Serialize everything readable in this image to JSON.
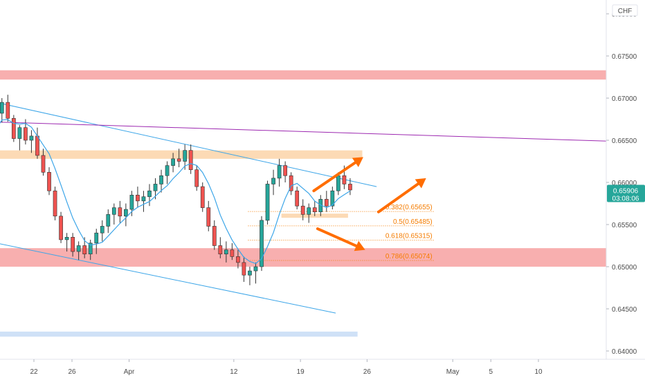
{
  "chart_data": {
    "type": "candlestick",
    "currency": "CHF",
    "y_axis": {
      "ticks": [
        "0.68000",
        "0.67500",
        "0.67000",
        "0.66500",
        "0.66000",
        "0.65500",
        "0.65000",
        "0.64500",
        "0.64000"
      ],
      "range": [
        0.6388,
        0.6812
      ]
    },
    "x_axis": {
      "ticks": [
        {
          "label": "22",
          "x": 22
        },
        {
          "label": "26",
          "x": 26
        },
        {
          "label": "Apr",
          "x": 32
        },
        {
          "label": "12",
          "x": 43
        },
        {
          "label": "19",
          "x": 50
        },
        {
          "label": "26",
          "x": 57
        },
        {
          "label": "May",
          "x": 66
        },
        {
          "label": "5",
          "x": 70
        },
        {
          "label": "10",
          "x": 75
        }
      ],
      "range": [
        17.2,
        85.0
      ]
    },
    "last_price": {
      "value": "0.65906",
      "countdown": "03:08:06",
      "color": "#26a69a"
    },
    "candles": [
      [
        0.6657,
        0.6668,
        0.6638,
        0.6645
      ],
      [
        0.6645,
        0.6689,
        0.664,
        0.6682
      ],
      [
        0.6682,
        0.67,
        0.6671,
        0.6695
      ],
      [
        0.6695,
        0.6704,
        0.6672,
        0.6676
      ],
      [
        0.6676,
        0.668,
        0.6648,
        0.6652
      ],
      [
        0.6652,
        0.6668,
        0.6638,
        0.6665
      ],
      [
        0.6665,
        0.6675,
        0.6645,
        0.665
      ],
      [
        0.665,
        0.6662,
        0.6635,
        0.6655
      ],
      [
        0.6655,
        0.6665,
        0.6628,
        0.6632
      ],
      [
        0.6632,
        0.664,
        0.6608,
        0.6612
      ],
      [
        0.6612,
        0.6618,
        0.6585,
        0.659
      ],
      [
        0.659,
        0.6595,
        0.6555,
        0.656
      ],
      [
        0.656,
        0.6565,
        0.6528,
        0.6532
      ],
      [
        0.6532,
        0.654,
        0.6518,
        0.6535
      ],
      [
        0.6535,
        0.654,
        0.6512,
        0.6518
      ],
      [
        0.6518,
        0.653,
        0.6508,
        0.6525
      ],
      [
        0.6525,
        0.6535,
        0.651,
        0.6515
      ],
      [
        0.6515,
        0.6532,
        0.6508,
        0.6528
      ],
      [
        0.6528,
        0.6545,
        0.6515,
        0.654
      ],
      [
        0.654,
        0.6555,
        0.653,
        0.6548
      ],
      [
        0.6548,
        0.6568,
        0.654,
        0.6562
      ],
      [
        0.6562,
        0.6575,
        0.655,
        0.657
      ],
      [
        0.657,
        0.6578,
        0.6552,
        0.656
      ],
      [
        0.656,
        0.6575,
        0.6548,
        0.6568
      ],
      [
        0.6568,
        0.659,
        0.656,
        0.6585
      ],
      [
        0.6585,
        0.6595,
        0.657,
        0.6578
      ],
      [
        0.6578,
        0.659,
        0.6565,
        0.6583
      ],
      [
        0.6583,
        0.6598,
        0.6572,
        0.659
      ],
      [
        0.659,
        0.6605,
        0.658,
        0.6598
      ],
      [
        0.6598,
        0.6615,
        0.6588,
        0.6608
      ],
      [
        0.6608,
        0.6625,
        0.6598,
        0.662
      ],
      [
        0.662,
        0.6635,
        0.6612,
        0.6628
      ],
      [
        0.6628,
        0.664,
        0.6618,
        0.6625
      ],
      [
        0.6625,
        0.6645,
        0.6615,
        0.6638
      ],
      [
        0.6638,
        0.6645,
        0.661,
        0.6615
      ],
      [
        0.6615,
        0.662,
        0.659,
        0.6595
      ],
      [
        0.6595,
        0.66,
        0.6565,
        0.657
      ],
      [
        0.657,
        0.6578,
        0.6542,
        0.6548
      ],
      [
        0.6548,
        0.6555,
        0.652,
        0.6525
      ],
      [
        0.6525,
        0.6535,
        0.651,
        0.6515
      ],
      [
        0.6515,
        0.653,
        0.6505,
        0.652
      ],
      [
        0.652,
        0.6528,
        0.6508,
        0.6512
      ],
      [
        0.6512,
        0.652,
        0.6498,
        0.6505
      ],
      [
        0.6505,
        0.6512,
        0.6482,
        0.649
      ],
      [
        0.649,
        0.65,
        0.6478,
        0.6495
      ],
      [
        0.6495,
        0.6505,
        0.648,
        0.65
      ],
      [
        0.65,
        0.656,
        0.6495,
        0.6555
      ],
      [
        0.6555,
        0.6602,
        0.655,
        0.6598
      ],
      [
        0.6598,
        0.6615,
        0.6585,
        0.6605
      ],
      [
        0.6605,
        0.6628,
        0.6595,
        0.662
      ],
      [
        0.662,
        0.6625,
        0.66,
        0.6608
      ],
      [
        0.6608,
        0.6612,
        0.6585,
        0.659
      ],
      [
        0.659,
        0.6595,
        0.6568,
        0.6572
      ],
      [
        0.6572,
        0.658,
        0.6555,
        0.6562
      ],
      [
        0.6562,
        0.6575,
        0.6552,
        0.657
      ],
      [
        0.657,
        0.6578,
        0.656,
        0.6565
      ],
      [
        0.6565,
        0.6585,
        0.656,
        0.658
      ],
      [
        0.658,
        0.659,
        0.6565,
        0.6572
      ],
      [
        0.6572,
        0.6595,
        0.6568,
        0.659
      ],
      [
        0.659,
        0.6612,
        0.6585,
        0.6608
      ],
      [
        0.6608,
        0.662,
        0.6592,
        0.6598
      ],
      [
        0.6598,
        0.6605,
        0.6585,
        0.6591
      ]
    ],
    "candle_x_start": 17.4,
    "candle_x_step": 0.62,
    "moving_average_color": "#3ba5e8",
    "bull_color": "#26a69a",
    "bear_color": "#ef5350",
    "zones": [
      {
        "label": "red resistance zone",
        "y_top": 0.6733,
        "y_bottom": 0.6722,
        "x_start": 17.2,
        "x_end": 85.0,
        "color": "#f7a1a1"
      },
      {
        "label": "orange supply zone",
        "y_top": 0.6638,
        "y_bottom": 0.6628,
        "x_start": 17.2,
        "x_end": 56.5,
        "color": "#fbd3a8"
      },
      {
        "label": "red support zone",
        "y_top": 0.6522,
        "y_bottom": 0.65,
        "x_start": 17.2,
        "x_end": 85.0,
        "color": "#f7a1a1"
      },
      {
        "label": "orange small zone",
        "y_top": 0.6563,
        "y_bottom": 0.6558,
        "x_start": 48.0,
        "x_end": 55.0,
        "color": "#fbd3a8"
      },
      {
        "label": "blue zone",
        "y_top": 0.6423,
        "y_bottom": 0.6417,
        "x_start": 17.2,
        "x_end": 56.0,
        "color": "#c7dcf6"
      }
    ],
    "lines": [
      {
        "label": "channel upper",
        "from": [
          17.2,
          0.6697
        ],
        "to": [
          58.0,
          0.6595
        ],
        "color": "#3ba5e8"
      },
      {
        "label": "channel lower",
        "from": [
          17.2,
          0.653
        ],
        "to": [
          53.7,
          0.6445
        ],
        "color": "#3ba5e8"
      },
      {
        "label": "purple trendline",
        "from": [
          17.2,
          0.6672
        ],
        "to": [
          85.0,
          0.6648
        ],
        "color": "#9c27b0"
      }
    ],
    "fibonacci": [
      {
        "label": "0.382(0.65655)",
        "value": 0.65655
      },
      {
        "label": "0.5(0.65485)",
        "value": 0.65485
      },
      {
        "label": "0.618(0.65315)",
        "value": 0.65315
      },
      {
        "label": "0.786(0.65074)",
        "value": 0.65074
      }
    ],
    "fib_x_start": 44.5,
    "fib_x_end": 64.0,
    "fib_color": "#f57c00",
    "arrows": [
      {
        "label": "up arrow 1",
        "from": [
          51.4,
          0.659
        ],
        "to": [
          56.6,
          0.663
        ]
      },
      {
        "label": "up arrow 2",
        "from": [
          58.2,
          0.6565
        ],
        "to": [
          63.2,
          0.6605
        ]
      },
      {
        "label": "down arrow",
        "from": [
          51.8,
          0.6545
        ],
        "to": [
          56.8,
          0.652
        ]
      }
    ],
    "arrow_color": "#ff6d00"
  }
}
